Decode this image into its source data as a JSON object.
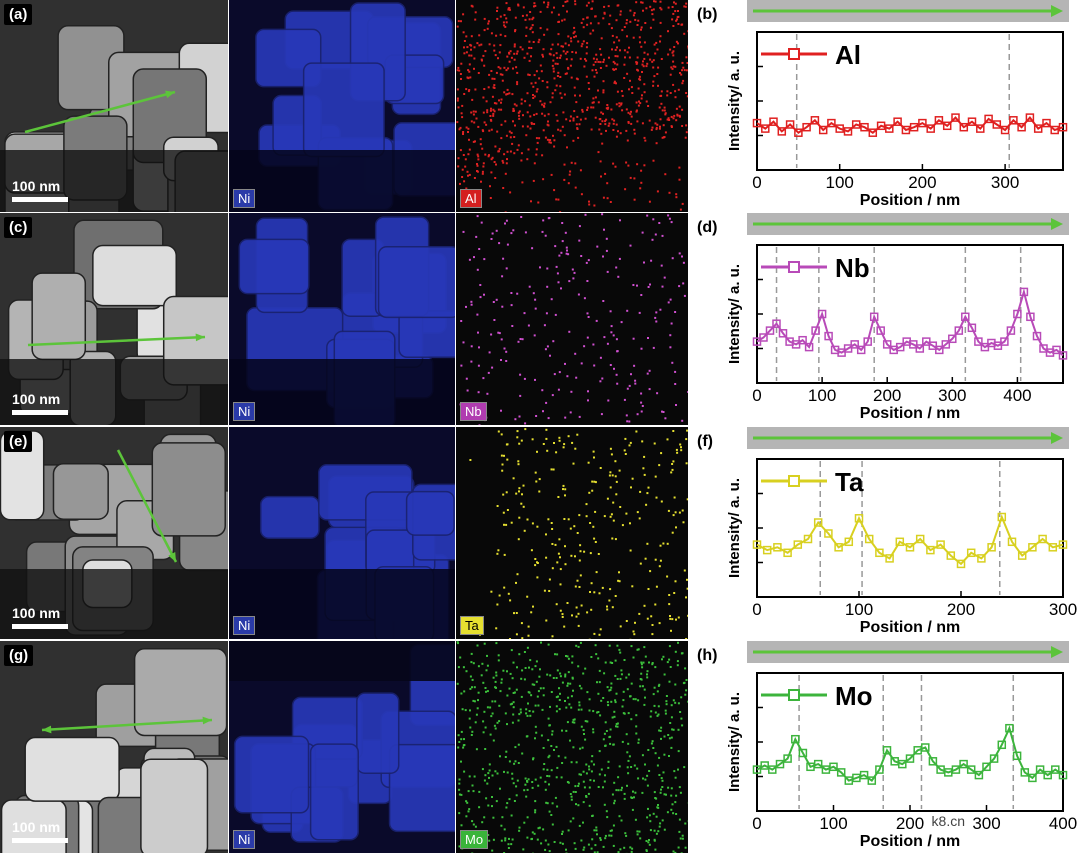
{
  "panels": [
    {
      "micrograph_label": "(a)",
      "scale_label": "100 nm",
      "ni_tag": "Ni",
      "el_tag": "Al",
      "el_tag_bg": "#d42020",
      "el_tag_fg": "#ffffff",
      "map_color": "#e02222",
      "chart_label": "(b)"
    },
    {
      "micrograph_label": "(c)",
      "scale_label": "100 nm",
      "ni_tag": "Ni",
      "el_tag": "Nb",
      "el_tag_bg": "#b03cb0",
      "el_tag_fg": "#ffffff",
      "map_color": "#d050d0",
      "chart_label": "(d)"
    },
    {
      "micrograph_label": "(e)",
      "scale_label": "100 nm",
      "ni_tag": "Ni",
      "el_tag": "Ta",
      "el_tag_bg": "#e6e030",
      "el_tag_fg": "#000000",
      "map_color": "#e6e030",
      "chart_label": "(f)"
    },
    {
      "micrograph_label": "(g)",
      "scale_label": "100 nm",
      "ni_tag": "Ni",
      "el_tag": "Mo",
      "el_tag_bg": "#3ab43a",
      "el_tag_fg": "#ffffff",
      "map_color": "#3cc03c",
      "chart_label": "(h)"
    }
  ],
  "chart_data": [
    {
      "type": "line",
      "title": "",
      "legend": "Al",
      "color": "#e02020",
      "xlabel": "Position / nm",
      "ylabel": "Intensity/ a. u.",
      "xlim": [
        0,
        370
      ],
      "ylim": [
        0,
        1
      ],
      "xticks": [
        0,
        100,
        200,
        300
      ],
      "grid": false,
      "legend_position": "top-left",
      "boundaries": [
        48,
        305
      ],
      "x": [
        0,
        10,
        20,
        30,
        40,
        50,
        60,
        70,
        80,
        90,
        100,
        110,
        120,
        130,
        140,
        150,
        160,
        170,
        180,
        190,
        200,
        210,
        220,
        230,
        240,
        250,
        260,
        270,
        280,
        290,
        300,
        310,
        320,
        330,
        340,
        350,
        360,
        370
      ],
      "y": [
        0.34,
        0.3,
        0.35,
        0.28,
        0.33,
        0.27,
        0.31,
        0.36,
        0.29,
        0.34,
        0.3,
        0.28,
        0.33,
        0.31,
        0.27,
        0.32,
        0.3,
        0.35,
        0.29,
        0.31,
        0.34,
        0.3,
        0.36,
        0.32,
        0.38,
        0.31,
        0.35,
        0.3,
        0.37,
        0.33,
        0.29,
        0.36,
        0.31,
        0.38,
        0.3,
        0.34,
        0.29,
        0.31
      ]
    },
    {
      "type": "line",
      "title": "",
      "legend": "Nb",
      "color": "#b84ab8",
      "xlabel": "Position / nm",
      "ylabel": "Intensity/ a. u.",
      "xlim": [
        0,
        470
      ],
      "ylim": [
        0,
        1
      ],
      "xticks": [
        0,
        100,
        200,
        300,
        400
      ],
      "grid": false,
      "legend_position": "top-left",
      "boundaries": [
        30,
        95,
        180,
        320,
        405
      ],
      "x": [
        0,
        10,
        20,
        30,
        40,
        50,
        60,
        70,
        80,
        90,
        100,
        110,
        120,
        130,
        140,
        150,
        160,
        170,
        180,
        190,
        200,
        210,
        220,
        230,
        240,
        250,
        260,
        270,
        280,
        290,
        300,
        310,
        320,
        330,
        340,
        350,
        360,
        370,
        380,
        390,
        400,
        410,
        420,
        430,
        440,
        450,
        460,
        470
      ],
      "y": [
        0.3,
        0.33,
        0.38,
        0.43,
        0.36,
        0.3,
        0.28,
        0.31,
        0.26,
        0.38,
        0.5,
        0.34,
        0.24,
        0.22,
        0.25,
        0.28,
        0.24,
        0.3,
        0.48,
        0.38,
        0.28,
        0.24,
        0.26,
        0.3,
        0.28,
        0.25,
        0.3,
        0.27,
        0.24,
        0.28,
        0.32,
        0.38,
        0.48,
        0.4,
        0.3,
        0.26,
        0.29,
        0.27,
        0.3,
        0.38,
        0.5,
        0.66,
        0.48,
        0.34,
        0.25,
        0.22,
        0.24,
        0.2
      ]
    },
    {
      "type": "line",
      "title": "",
      "legend": "Ta",
      "color": "#d8d020",
      "xlabel": "Position / nm",
      "ylabel": "Intensity/ a. u.",
      "xlim": [
        0,
        300
      ],
      "ylim": [
        0,
        1
      ],
      "xticks": [
        0,
        100,
        200,
        300
      ],
      "grid": false,
      "legend_position": "top-left",
      "boundaries": [
        62,
        103,
        238
      ],
      "x": [
        0,
        10,
        20,
        30,
        40,
        50,
        60,
        70,
        80,
        90,
        100,
        110,
        120,
        130,
        140,
        150,
        160,
        170,
        180,
        190,
        200,
        210,
        220,
        230,
        240,
        250,
        260,
        270,
        280,
        290,
        300
      ],
      "y": [
        0.38,
        0.34,
        0.36,
        0.32,
        0.38,
        0.42,
        0.54,
        0.46,
        0.36,
        0.4,
        0.57,
        0.42,
        0.32,
        0.28,
        0.4,
        0.36,
        0.42,
        0.34,
        0.38,
        0.3,
        0.24,
        0.32,
        0.28,
        0.36,
        0.58,
        0.4,
        0.3,
        0.36,
        0.42,
        0.36,
        0.38
      ]
    },
    {
      "type": "line",
      "title": "",
      "legend": "Mo",
      "color": "#3cb43c",
      "xlabel": "Position / nm",
      "ylabel": "Intensity/ a. u.",
      "xlim": [
        0,
        400
      ],
      "ylim": [
        0,
        1
      ],
      "xticks": [
        0,
        100,
        200,
        300,
        400
      ],
      "grid": false,
      "legend_position": "top-left",
      "boundaries": [
        55,
        165,
        215,
        335
      ],
      "x": [
        0,
        10,
        20,
        30,
        40,
        50,
        60,
        70,
        80,
        90,
        100,
        110,
        120,
        130,
        140,
        150,
        160,
        170,
        180,
        190,
        200,
        210,
        220,
        230,
        240,
        250,
        260,
        270,
        280,
        290,
        300,
        310,
        320,
        330,
        340,
        350,
        360,
        370,
        380,
        390,
        400
      ],
      "y": [
        0.3,
        0.33,
        0.3,
        0.34,
        0.38,
        0.52,
        0.42,
        0.32,
        0.34,
        0.3,
        0.32,
        0.28,
        0.22,
        0.24,
        0.26,
        0.22,
        0.3,
        0.44,
        0.36,
        0.34,
        0.38,
        0.44,
        0.46,
        0.36,
        0.3,
        0.28,
        0.3,
        0.34,
        0.3,
        0.26,
        0.32,
        0.38,
        0.48,
        0.6,
        0.4,
        0.28,
        0.24,
        0.3,
        0.26,
        0.3,
        0.26
      ]
    }
  ],
  "watermark": "k8.cn"
}
